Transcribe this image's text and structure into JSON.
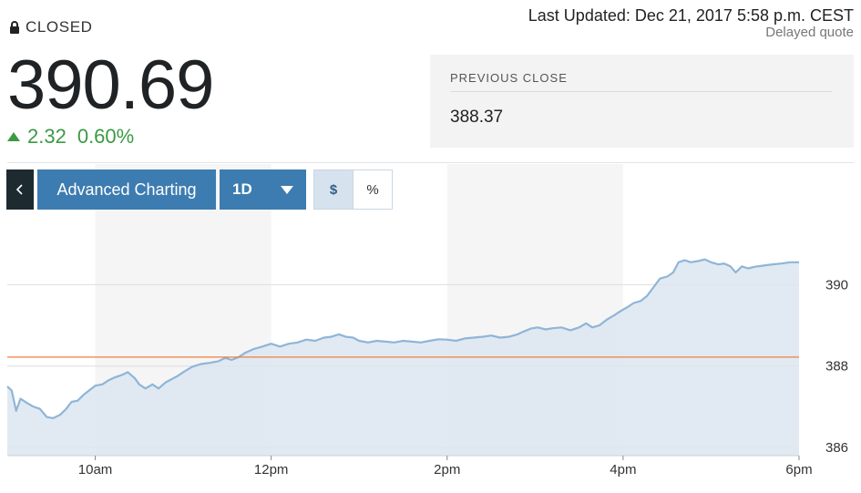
{
  "quote": {
    "status": "CLOSED",
    "price": "390.69",
    "change": "2.32",
    "change_percent": "0.60%",
    "direction": "up",
    "last_updated": "Last Updated: Dec 21, 2017 5:58 p.m. CEST",
    "delayed": "Delayed quote",
    "previous_close_label": "PREVIOUS CLOSE",
    "previous_close": "388.37"
  },
  "toolbar": {
    "back_icon": "chevron-left-icon",
    "advanced_label": "Advanced Charting",
    "range_label": "1D",
    "range_icon": "caret-down-icon",
    "currency_toggle": [
      {
        "label": "$",
        "active": true
      },
      {
        "label": "%",
        "active": false
      }
    ]
  },
  "colors": {
    "accent": "#3d7cb0",
    "dark": "#1d2b30",
    "positive": "#3c9a45",
    "line": "#8fb5d8",
    "fill": "#dce6f0",
    "reference": "#f07f3c"
  },
  "chart_data": {
    "type": "area",
    "x_ticks": [
      {
        "hour": 10,
        "label": "10am"
      },
      {
        "hour": 12,
        "label": "12pm"
      },
      {
        "hour": 14,
        "label": "2pm"
      },
      {
        "hour": 16,
        "label": "4pm"
      },
      {
        "hour": 18,
        "label": "6pm"
      }
    ],
    "y_ticks": [
      386,
      388,
      390
    ],
    "xlim": [
      9,
      18
    ],
    "ylim": [
      385.8,
      391.8
    ],
    "reference_line": 388.22,
    "shaded_bands": [
      [
        10,
        12
      ],
      [
        14,
        16
      ]
    ],
    "points": [
      [
        9.0,
        387.5
      ],
      [
        9.05,
        387.4
      ],
      [
        9.1,
        386.9
      ],
      [
        9.15,
        387.2
      ],
      [
        9.22,
        387.1
      ],
      [
        9.3,
        387.0
      ],
      [
        9.37,
        386.95
      ],
      [
        9.45,
        386.75
      ],
      [
        9.52,
        386.72
      ],
      [
        9.6,
        386.8
      ],
      [
        9.67,
        386.95
      ],
      [
        9.73,
        387.12
      ],
      [
        9.8,
        387.15
      ],
      [
        9.87,
        387.3
      ],
      [
        9.93,
        387.4
      ],
      [
        10.0,
        387.52
      ],
      [
        10.08,
        387.55
      ],
      [
        10.15,
        387.65
      ],
      [
        10.22,
        387.72
      ],
      [
        10.3,
        387.78
      ],
      [
        10.37,
        387.85
      ],
      [
        10.45,
        387.7
      ],
      [
        10.5,
        387.55
      ],
      [
        10.57,
        387.45
      ],
      [
        10.65,
        387.55
      ],
      [
        10.72,
        387.45
      ],
      [
        10.8,
        387.6
      ],
      [
        10.87,
        387.68
      ],
      [
        10.93,
        387.75
      ],
      [
        11.0,
        387.85
      ],
      [
        11.1,
        387.98
      ],
      [
        11.2,
        388.05
      ],
      [
        11.3,
        388.08
      ],
      [
        11.4,
        388.12
      ],
      [
        11.48,
        388.2
      ],
      [
        11.55,
        388.15
      ],
      [
        11.63,
        388.22
      ],
      [
        11.7,
        388.32
      ],
      [
        11.8,
        388.42
      ],
      [
        11.9,
        388.48
      ],
      [
        12.0,
        388.55
      ],
      [
        12.1,
        388.48
      ],
      [
        12.2,
        388.55
      ],
      [
        12.3,
        388.58
      ],
      [
        12.4,
        388.65
      ],
      [
        12.5,
        388.62
      ],
      [
        12.6,
        388.7
      ],
      [
        12.68,
        388.72
      ],
      [
        12.77,
        388.78
      ],
      [
        12.85,
        388.72
      ],
      [
        12.93,
        388.7
      ],
      [
        13.0,
        388.62
      ],
      [
        13.1,
        388.58
      ],
      [
        13.2,
        388.62
      ],
      [
        13.3,
        388.6
      ],
      [
        13.4,
        388.58
      ],
      [
        13.5,
        388.62
      ],
      [
        13.6,
        388.6
      ],
      [
        13.7,
        388.58
      ],
      [
        13.8,
        388.62
      ],
      [
        13.9,
        388.66
      ],
      [
        14.0,
        388.65
      ],
      [
        14.1,
        388.62
      ],
      [
        14.2,
        388.68
      ],
      [
        14.3,
        388.7
      ],
      [
        14.4,
        388.72
      ],
      [
        14.5,
        388.75
      ],
      [
        14.6,
        388.7
      ],
      [
        14.7,
        388.72
      ],
      [
        14.8,
        388.78
      ],
      [
        14.87,
        388.85
      ],
      [
        14.95,
        388.92
      ],
      [
        15.03,
        388.95
      ],
      [
        15.12,
        388.9
      ],
      [
        15.2,
        388.93
      ],
      [
        15.3,
        388.95
      ],
      [
        15.4,
        388.88
      ],
      [
        15.5,
        388.95
      ],
      [
        15.58,
        389.05
      ],
      [
        15.65,
        388.95
      ],
      [
        15.73,
        389.0
      ],
      [
        15.82,
        389.15
      ],
      [
        15.9,
        389.25
      ],
      [
        15.97,
        389.35
      ],
      [
        16.05,
        389.45
      ],
      [
        16.12,
        389.55
      ],
      [
        16.2,
        389.6
      ],
      [
        16.27,
        389.72
      ],
      [
        16.35,
        389.95
      ],
      [
        16.42,
        390.15
      ],
      [
        16.5,
        390.2
      ],
      [
        16.57,
        390.3
      ],
      [
        16.63,
        390.55
      ],
      [
        16.7,
        390.6
      ],
      [
        16.77,
        390.55
      ],
      [
        16.85,
        390.58
      ],
      [
        16.93,
        390.62
      ],
      [
        17.0,
        390.55
      ],
      [
        17.08,
        390.5
      ],
      [
        17.15,
        390.52
      ],
      [
        17.22,
        390.45
      ],
      [
        17.28,
        390.3
      ],
      [
        17.35,
        390.45
      ],
      [
        17.42,
        390.4
      ],
      [
        17.5,
        390.44
      ],
      [
        17.6,
        390.47
      ],
      [
        17.7,
        390.5
      ],
      [
        17.8,
        390.52
      ],
      [
        17.9,
        390.55
      ],
      [
        18.0,
        390.55
      ]
    ]
  }
}
